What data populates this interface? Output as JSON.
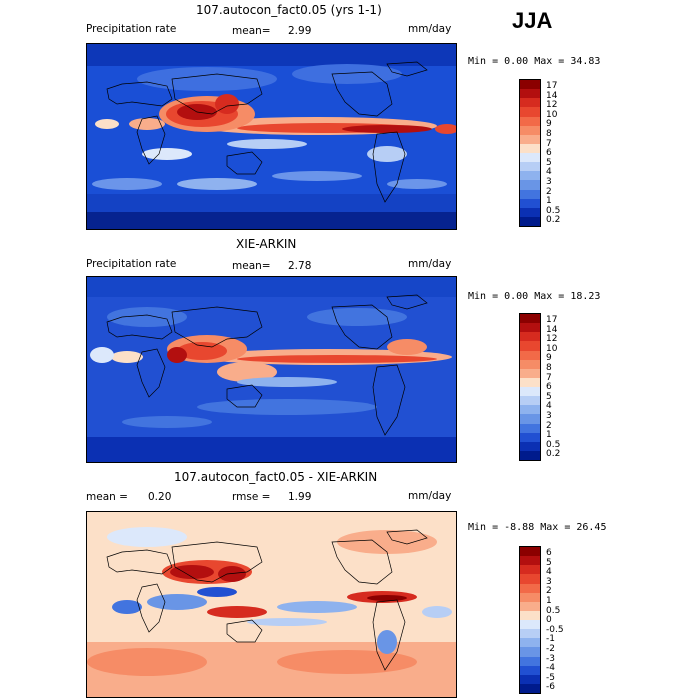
{
  "season": "JJA",
  "panels": [
    {
      "title": "107.autocon_fact0.05 (yrs 1-1)",
      "left_label": "Precipitation rate",
      "stat_label": "mean=",
      "stat_value": "2.99",
      "second_stat_label": "",
      "second_stat_value": "",
      "units": "mm/day",
      "range_text": "Min =    0.00 Max =  34.83",
      "colorbar": {
        "labels": [
          "17",
          "14",
          "12",
          "10",
          "9",
          "8",
          "7",
          "6",
          "5",
          "4",
          "3",
          "2",
          "1",
          "0.5",
          "0.2"
        ],
        "colors": [
          "#8b0000",
          "#b30f0f",
          "#d62b1f",
          "#e8472f",
          "#f26a48",
          "#f68c66",
          "#f9ad8b",
          "#fce0c8",
          "#dce8fb",
          "#b7cef5",
          "#8eb2ee",
          "#6995e6",
          "#4274df",
          "#2150d2",
          "#0b30b3",
          "#001b8c"
        ]
      }
    },
    {
      "title": "XIE-ARKIN",
      "left_label": "Precipitation rate",
      "stat_label": "mean=",
      "stat_value": "2.78",
      "second_stat_label": "",
      "second_stat_value": "",
      "units": "mm/day",
      "range_text": "Min =    0.00 Max =  18.23",
      "colorbar": {
        "labels": [
          "17",
          "14",
          "12",
          "10",
          "9",
          "8",
          "7",
          "6",
          "5",
          "4",
          "3",
          "2",
          "1",
          "0.5",
          "0.2"
        ],
        "colors": [
          "#8b0000",
          "#b30f0f",
          "#d62b1f",
          "#e8472f",
          "#f26a48",
          "#f68c66",
          "#f9ad8b",
          "#fce0c8",
          "#dce8fb",
          "#b7cef5",
          "#8eb2ee",
          "#6995e6",
          "#4274df",
          "#2150d2",
          "#0b30b3",
          "#001b8c"
        ]
      }
    },
    {
      "title": "107.autocon_fact0.05 - XIE-ARKIN",
      "left_label": "",
      "stat_label": "mean =",
      "stat_value": "0.20",
      "second_stat_label": "rmse =",
      "second_stat_value": "1.99",
      "units": "mm/day",
      "range_text": "Min =  -8.88 Max =  26.45",
      "colorbar": {
        "labels": [
          "6",
          "5",
          "4",
          "3",
          "2",
          "1",
          "0.5",
          "0",
          "-0.5",
          "-1",
          "-2",
          "-3",
          "-4",
          "-5",
          "-6"
        ],
        "colors": [
          "#8b0000",
          "#b30f0f",
          "#d62b1f",
          "#e8472f",
          "#f26a48",
          "#f68c66",
          "#f9ad8b",
          "#fce0c8",
          "#dce8fb",
          "#b7cef5",
          "#8eb2ee",
          "#6995e6",
          "#4274df",
          "#2150d2",
          "#0b30b3",
          "#001b8c"
        ]
      }
    }
  ]
}
